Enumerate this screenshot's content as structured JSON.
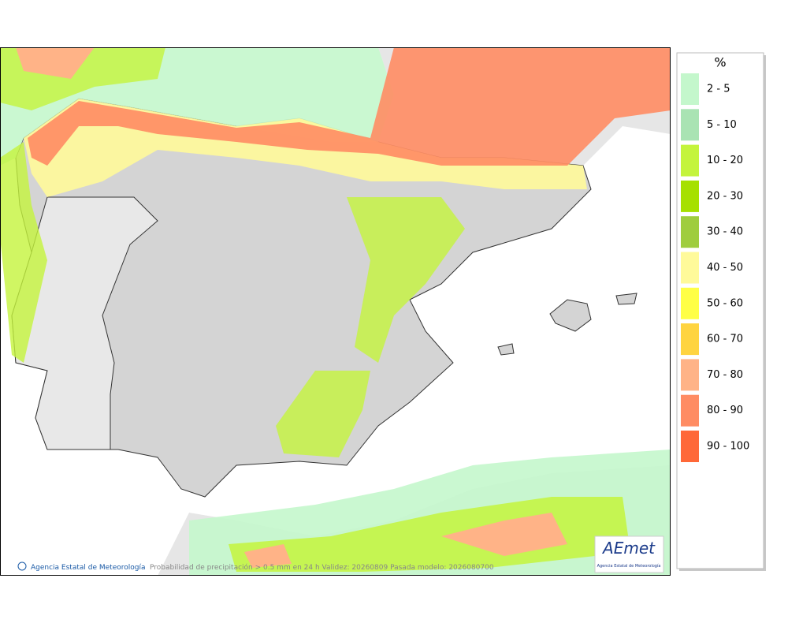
{
  "legend": {
    "title": "%",
    "items": [
      {
        "label": "2 - 5",
        "color": "#c4f7cc"
      },
      {
        "label": "5 - 10",
        "color": "#a9e3b3"
      },
      {
        "label": "10 - 20",
        "color": "#c4f43c"
      },
      {
        "label": "20 - 30",
        "color": "#a6e000"
      },
      {
        "label": "30 - 40",
        "color": "#9fcd3e"
      },
      {
        "label": "40 - 50",
        "color": "#fffa9a"
      },
      {
        "label": "50 - 60",
        "color": "#ffff45"
      },
      {
        "label": "60 - 70",
        "color": "#ffd440"
      },
      {
        "label": "70 - 80",
        "color": "#ffb387"
      },
      {
        "label": "80 - 90",
        "color": "#ff8c63"
      },
      {
        "label": "90 - 100",
        "color": "#ff6838"
      }
    ]
  },
  "footer": {
    "agency": "Agencia Estatal de Meteorología",
    "caption": "Probabilidad de precipitación > 0.5 mm en 24 h Validez: 20260809 Pasada modelo: 2026080700"
  },
  "logo": {
    "name": "AEmet",
    "subtitle": "Agencia Estatal de Meteorología"
  }
}
